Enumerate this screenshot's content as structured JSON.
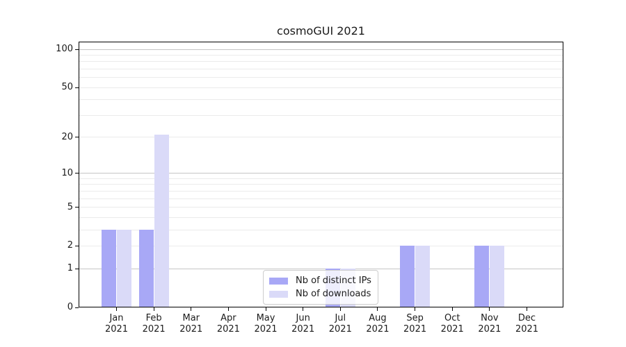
{
  "chart_data": {
    "type": "bar",
    "title": "cosmoGUI 2021",
    "categories": [
      {
        "month": "Jan",
        "year": "2021"
      },
      {
        "month": "Feb",
        "year": "2021"
      },
      {
        "month": "Mar",
        "year": "2021"
      },
      {
        "month": "Apr",
        "year": "2021"
      },
      {
        "month": "May",
        "year": "2021"
      },
      {
        "month": "Jun",
        "year": "2021"
      },
      {
        "month": "Jul",
        "year": "2021"
      },
      {
        "month": "Aug",
        "year": "2021"
      },
      {
        "month": "Sep",
        "year": "2021"
      },
      {
        "month": "Oct",
        "year": "2021"
      },
      {
        "month": "Nov",
        "year": "2021"
      },
      {
        "month": "Dec",
        "year": "2021"
      }
    ],
    "series": [
      {
        "name": "Nb of distinct IPs",
        "color": "#a8a8f6",
        "values": [
          3,
          3,
          0,
          0,
          0,
          0,
          1,
          0,
          2,
          0,
          2,
          0
        ]
      },
      {
        "name": "Nb of downloads",
        "color": "#dadaf8",
        "values": [
          3,
          21,
          0,
          0,
          0,
          0,
          1,
          0,
          2,
          0,
          2,
          0
        ]
      }
    ],
    "y_axis": {
      "scale": "log1p",
      "lim": [
        0,
        100
      ],
      "ticks": [
        0,
        1,
        2,
        5,
        10,
        20,
        50,
        100
      ],
      "major_gridlines": [
        1,
        10,
        100
      ],
      "minor_gridlines": [
        2,
        3,
        4,
        5,
        6,
        7,
        8,
        9,
        20,
        30,
        40,
        50,
        60,
        70,
        80,
        90
      ]
    },
    "grid": true,
    "legend_position": "lower center",
    "colors": {
      "spine": "#000000",
      "grid_minor": "#ebebeb",
      "grid_major": "#c5c5c5",
      "background": "#ffffff"
    }
  }
}
